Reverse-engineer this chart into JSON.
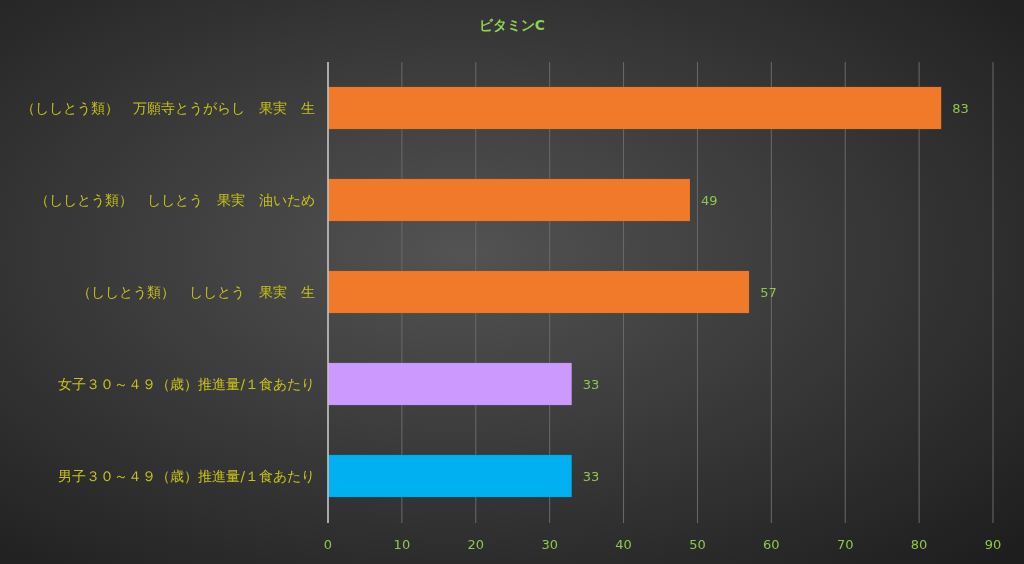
{
  "chart_data": {
    "type": "bar",
    "orientation": "horizontal",
    "title": "ビタミンC",
    "categories": [
      "（ししとう類）　万願寺とうがらし　果実　生",
      "（ししとう類）　ししとう　果実　油いため",
      "（ししとう類）　ししとう　果実　生",
      "女子３０～４９（歳）推進量/１食あたり",
      "男子３０～４９（歳）推進量/１食あたり"
    ],
    "values": [
      83,
      49,
      57,
      33,
      33
    ],
    "colors": [
      "#f07a2a",
      "#f07a2a",
      "#f07a2a",
      "#cc99ff",
      "#00b0f0"
    ],
    "xlim": [
      0,
      90
    ],
    "xticks": [
      0,
      10,
      20,
      30,
      40,
      50,
      60,
      70,
      80,
      90
    ],
    "grid": "x",
    "data_labels": true
  }
}
